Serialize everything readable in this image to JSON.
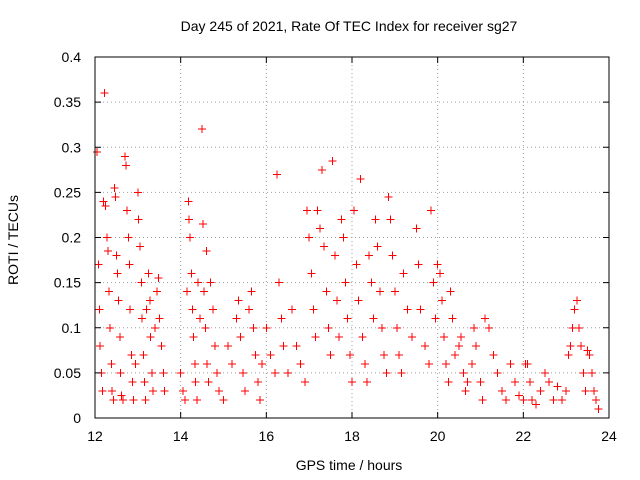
{
  "chart_data": {
    "type": "scatter",
    "title": "Day 245 of 2021, Rate Of TEC Index for receiver sg27",
    "xlabel": "GPS time / hours",
    "ylabel": "ROTI / TECUs",
    "xlim": [
      12,
      24
    ],
    "ylim": [
      0,
      0.4
    ],
    "x_ticks": [
      12,
      14,
      16,
      18,
      20,
      22,
      24
    ],
    "y_ticks": [
      0,
      0.05,
      0.1,
      0.15,
      0.2,
      0.25,
      0.3,
      0.35,
      0.4
    ],
    "x_tick_labels": [
      "12",
      "14",
      "16",
      "18",
      "20",
      "22",
      "24"
    ],
    "y_tick_labels": [
      "0",
      "0.05",
      "0.1",
      "0.15",
      "0.2",
      "0.25",
      "0.3",
      "0.35",
      "0.4"
    ],
    "grid": true,
    "marker": "plus",
    "series_color": "#ff0000",
    "series": [
      {
        "name": "ROTI",
        "points": [
          [
            12.05,
            0.295
          ],
          [
            12.08,
            0.17
          ],
          [
            12.1,
            0.12
          ],
          [
            12.12,
            0.08
          ],
          [
            12.15,
            0.05
          ],
          [
            12.18,
            0.03
          ],
          [
            12.2,
            0.24
          ],
          [
            12.22,
            0.36
          ],
          [
            12.25,
            0.235
          ],
          [
            12.28,
            0.2
          ],
          [
            12.3,
            0.185
          ],
          [
            12.33,
            0.14
          ],
          [
            12.35,
            0.1
          ],
          [
            12.38,
            0.06
          ],
          [
            12.4,
            0.03
          ],
          [
            12.43,
            0.02
          ],
          [
            12.45,
            0.255
          ],
          [
            12.48,
            0.245
          ],
          [
            12.5,
            0.18
          ],
          [
            12.53,
            0.16
          ],
          [
            12.55,
            0.13
          ],
          [
            12.58,
            0.09
          ],
          [
            12.6,
            0.05
          ],
          [
            12.62,
            0.025
          ],
          [
            12.65,
            0.02
          ],
          [
            12.7,
            0.29
          ],
          [
            12.72,
            0.28
          ],
          [
            12.75,
            0.23
          ],
          [
            12.78,
            0.2
          ],
          [
            12.8,
            0.17
          ],
          [
            12.82,
            0.12
          ],
          [
            12.85,
            0.07
          ],
          [
            12.88,
            0.04
          ],
          [
            12.9,
            0.02
          ],
          [
            12.95,
            0.06
          ],
          [
            13.0,
            0.25
          ],
          [
            13.02,
            0.22
          ],
          [
            13.05,
            0.19
          ],
          [
            13.08,
            0.15
          ],
          [
            13.1,
            0.11
          ],
          [
            13.13,
            0.07
          ],
          [
            13.15,
            0.04
          ],
          [
            13.18,
            0.02
          ],
          [
            13.2,
            0.12
          ],
          [
            13.25,
            0.16
          ],
          [
            13.28,
            0.13
          ],
          [
            13.3,
            0.09
          ],
          [
            13.33,
            0.05
          ],
          [
            13.35,
            0.03
          ],
          [
            13.4,
            0.1
          ],
          [
            13.45,
            0.14
          ],
          [
            13.48,
            0.155
          ],
          [
            13.5,
            0.11
          ],
          [
            13.55,
            0.08
          ],
          [
            13.6,
            0.05
          ],
          [
            13.62,
            0.03
          ],
          [
            14.0,
            0.05
          ],
          [
            14.05,
            0.03
          ],
          [
            14.1,
            0.02
          ],
          [
            14.15,
            0.14
          ],
          [
            14.18,
            0.24
          ],
          [
            14.2,
            0.22
          ],
          [
            14.22,
            0.2
          ],
          [
            14.25,
            0.16
          ],
          [
            14.28,
            0.12
          ],
          [
            14.3,
            0.09
          ],
          [
            14.33,
            0.06
          ],
          [
            14.35,
            0.04
          ],
          [
            14.38,
            0.02
          ],
          [
            14.4,
            0.15
          ],
          [
            14.45,
            0.11
          ],
          [
            14.5,
            0.32
          ],
          [
            14.52,
            0.215
          ],
          [
            14.55,
            0.14
          ],
          [
            14.58,
            0.1
          ],
          [
            14.6,
            0.185
          ],
          [
            14.62,
            0.06
          ],
          [
            14.65,
            0.04
          ],
          [
            14.7,
            0.15
          ],
          [
            14.75,
            0.12
          ],
          [
            14.8,
            0.08
          ],
          [
            14.85,
            0.05
          ],
          [
            14.9,
            0.03
          ],
          [
            15.0,
            0.02
          ],
          [
            15.1,
            0.08
          ],
          [
            15.2,
            0.06
          ],
          [
            15.3,
            0.11
          ],
          [
            15.35,
            0.13
          ],
          [
            15.4,
            0.09
          ],
          [
            15.45,
            0.05
          ],
          [
            15.5,
            0.03
          ],
          [
            15.6,
            0.12
          ],
          [
            15.65,
            0.14
          ],
          [
            15.7,
            0.1
          ],
          [
            15.75,
            0.07
          ],
          [
            15.8,
            0.04
          ],
          [
            15.85,
            0.02
          ],
          [
            15.9,
            0.06
          ],
          [
            16.0,
            0.1
          ],
          [
            16.1,
            0.07
          ],
          [
            16.2,
            0.05
          ],
          [
            16.25,
            0.27
          ],
          [
            16.3,
            0.15
          ],
          [
            16.35,
            0.11
          ],
          [
            16.4,
            0.08
          ],
          [
            16.5,
            0.05
          ],
          [
            16.6,
            0.12
          ],
          [
            16.7,
            0.08
          ],
          [
            16.8,
            0.06
          ],
          [
            16.9,
            0.04
          ],
          [
            16.95,
            0.23
          ],
          [
            17.0,
            0.2
          ],
          [
            17.05,
            0.16
          ],
          [
            17.1,
            0.12
          ],
          [
            17.15,
            0.09
          ],
          [
            17.2,
            0.23
          ],
          [
            17.25,
            0.21
          ],
          [
            17.3,
            0.275
          ],
          [
            17.35,
            0.19
          ],
          [
            17.4,
            0.14
          ],
          [
            17.45,
            0.1
          ],
          [
            17.5,
            0.07
          ],
          [
            17.55,
            0.285
          ],
          [
            17.6,
            0.18
          ],
          [
            17.65,
            0.13
          ],
          [
            17.7,
            0.09
          ],
          [
            17.75,
            0.22
          ],
          [
            17.8,
            0.2
          ],
          [
            17.85,
            0.15
          ],
          [
            17.9,
            0.11
          ],
          [
            17.95,
            0.07
          ],
          [
            18.0,
            0.04
          ],
          [
            18.05,
            0.23
          ],
          [
            18.1,
            0.17
          ],
          [
            18.15,
            0.13
          ],
          [
            18.2,
            0.265
          ],
          [
            18.25,
            0.09
          ],
          [
            18.3,
            0.06
          ],
          [
            18.35,
            0.04
          ],
          [
            18.4,
            0.18
          ],
          [
            18.45,
            0.15
          ],
          [
            18.5,
            0.11
          ],
          [
            18.55,
            0.22
          ],
          [
            18.6,
            0.19
          ],
          [
            18.65,
            0.14
          ],
          [
            18.7,
            0.1
          ],
          [
            18.75,
            0.07
          ],
          [
            18.8,
            0.05
          ],
          [
            18.85,
            0.245
          ],
          [
            18.9,
            0.22
          ],
          [
            18.95,
            0.18
          ],
          [
            19.0,
            0.14
          ],
          [
            19.05,
            0.1
          ],
          [
            19.1,
            0.07
          ],
          [
            19.15,
            0.05
          ],
          [
            19.2,
            0.16
          ],
          [
            19.3,
            0.12
          ],
          [
            19.4,
            0.09
          ],
          [
            19.5,
            0.21
          ],
          [
            19.55,
            0.17
          ],
          [
            19.6,
            0.12
          ],
          [
            19.7,
            0.08
          ],
          [
            19.8,
            0.06
          ],
          [
            19.85,
            0.23
          ],
          [
            19.9,
            0.15
          ],
          [
            19.95,
            0.11
          ],
          [
            20.0,
            0.17
          ],
          [
            20.05,
            0.16
          ],
          [
            20.1,
            0.13
          ],
          [
            20.15,
            0.09
          ],
          [
            20.2,
            0.06
          ],
          [
            20.25,
            0.04
          ],
          [
            20.3,
            0.14
          ],
          [
            20.35,
            0.11
          ],
          [
            20.4,
            0.07
          ],
          [
            20.5,
            0.08
          ],
          [
            20.55,
            0.09
          ],
          [
            20.6,
            0.05
          ],
          [
            20.65,
            0.03
          ],
          [
            20.7,
            0.04
          ],
          [
            20.8,
            0.06
          ],
          [
            20.85,
            0.1
          ],
          [
            20.9,
            0.08
          ],
          [
            21.0,
            0.04
          ],
          [
            21.05,
            0.02
          ],
          [
            21.1,
            0.11
          ],
          [
            21.2,
            0.1
          ],
          [
            21.3,
            0.07
          ],
          [
            21.4,
            0.05
          ],
          [
            21.5,
            0.03
          ],
          [
            21.6,
            0.02
          ],
          [
            21.7,
            0.06
          ],
          [
            21.8,
            0.04
          ],
          [
            21.9,
            0.025
          ],
          [
            22.0,
            0.02
          ],
          [
            22.05,
            0.06
          ],
          [
            22.1,
            0.06
          ],
          [
            22.15,
            0.04
          ],
          [
            22.2,
            0.02
          ],
          [
            22.3,
            0.015
          ],
          [
            22.4,
            0.03
          ],
          [
            22.5,
            0.05
          ],
          [
            22.6,
            0.04
          ],
          [
            22.7,
            0.02
          ],
          [
            22.8,
            0.035
          ],
          [
            22.9,
            0.02
          ],
          [
            23.0,
            0.03
          ],
          [
            23.05,
            0.07
          ],
          [
            23.1,
            0.08
          ],
          [
            23.15,
            0.1
          ],
          [
            23.2,
            0.12
          ],
          [
            23.25,
            0.13
          ],
          [
            23.3,
            0.1
          ],
          [
            23.35,
            0.08
          ],
          [
            23.4,
            0.05
          ],
          [
            23.45,
            0.03
          ],
          [
            23.5,
            0.075
          ],
          [
            23.55,
            0.07
          ],
          [
            23.6,
            0.05
          ],
          [
            23.65,
            0.03
          ],
          [
            23.7,
            0.02
          ],
          [
            23.75,
            0.01
          ]
        ]
      }
    ]
  }
}
